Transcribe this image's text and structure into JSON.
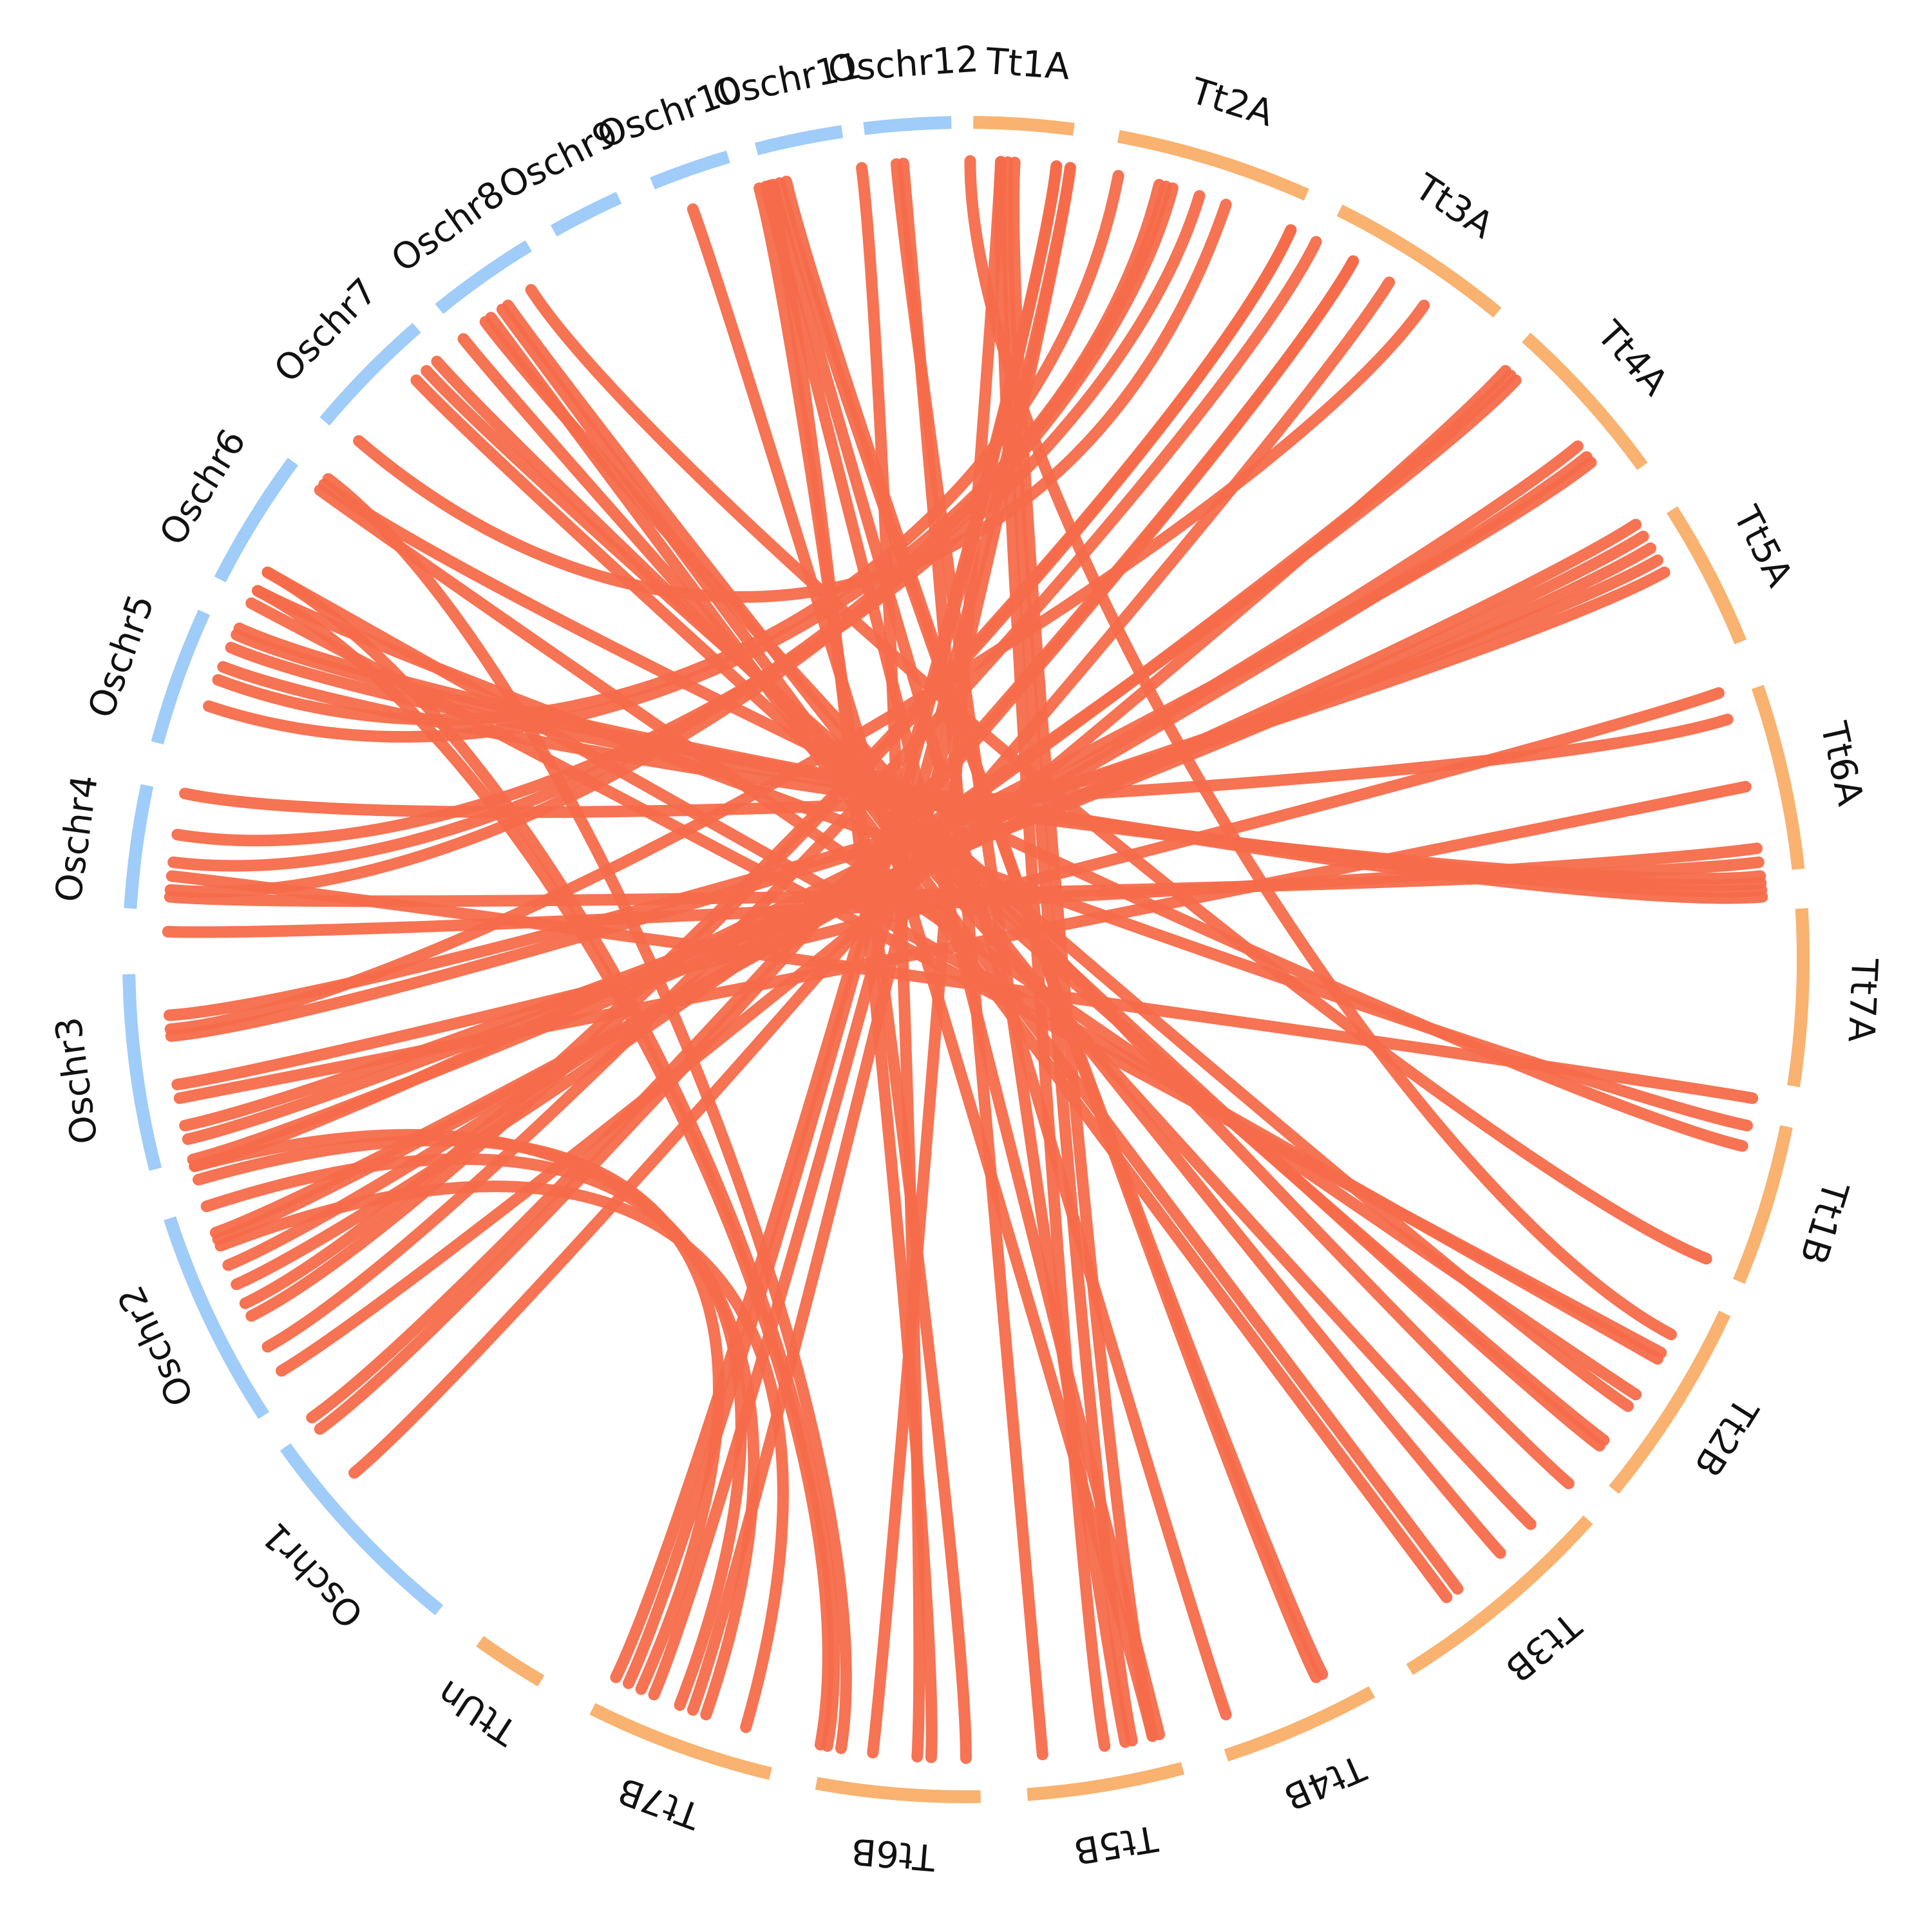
{
  "colors": {
    "rice_chromosome": "#9fccf8",
    "wheat_chromosome": "#f9b26f",
    "link": "#f56b4a",
    "label": "#111111",
    "background": "#ffffff"
  },
  "chromosomes": [
    {
      "id": "Tt1A",
      "label": "Tt1A",
      "group": "wheat",
      "start": 90.5,
      "end": 97.4
    },
    {
      "id": "Tt2A",
      "label": "Tt2A",
      "group": "wheat",
      "start": 100.5,
      "end": 114.0
    },
    {
      "id": "Tt3A",
      "label": "Tt3A",
      "group": "wheat",
      "start": 116.5,
      "end": 129.4
    },
    {
      "id": "Tt4A",
      "label": "Tt4A",
      "group": "wheat",
      "start": 132.0,
      "end": 143.9
    },
    {
      "id": "Tt5A",
      "label": "Tt5A",
      "group": "wheat",
      "start": 147.5,
      "end": 157.7
    },
    {
      "id": "Tt6A",
      "label": "Tt6A",
      "group": "wheat",
      "start": 161.0,
      "end": 173.8
    },
    {
      "id": "Tt7A",
      "label": "Tt7A",
      "group": "wheat",
      "start": 176.5,
      "end": 188.7
    },
    {
      "id": "Tt1B",
      "label": "Tt1B",
      "group": "wheat",
      "start": 191.5,
      "end": 202.6
    },
    {
      "id": "Tt2B",
      "label": "Tt2B",
      "group": "wheat",
      "start": 205.0,
      "end": 219.3
    },
    {
      "id": "Tt3B",
      "label": "Tt3B",
      "group": "wheat",
      "start": 222.0,
      "end": 238.0
    },
    {
      "id": "Tt4B",
      "label": "Tt4B",
      "group": "wheat",
      "start": 241.0,
      "end": 251.9
    },
    {
      "id": "Tt5B",
      "label": "Tt5B",
      "group": "wheat",
      "start": 255.0,
      "end": 265.8
    },
    {
      "id": "Tt6B",
      "label": "Tt6B",
      "group": "wheat",
      "start": 269.0,
      "end": 280.3
    },
    {
      "id": "Tt7B",
      "label": "Tt7B",
      "group": "wheat",
      "start": 283.5,
      "end": 296.5
    },
    {
      "id": "TtUn",
      "label": "TtUn",
      "group": "wheat",
      "start": 300.5,
      "end": 305.5
    },
    {
      "id": "Oschr1",
      "label": "Oschr1",
      "group": "rice",
      "start": 309.0,
      "end": 324.4
    },
    {
      "id": "Oschr2",
      "label": "Oschr2",
      "group": "rice",
      "start": 327.0,
      "end": 342.0
    },
    {
      "id": "Oschr3",
      "label": "Oschr3",
      "group": "rice",
      "start": 345.5,
      "end": 359.0
    },
    {
      "id": "Oschr4",
      "label": "Oschr4",
      "group": "rice",
      "start": 3.5,
      "end": 12.0
    },
    {
      "id": "Oschr5",
      "label": "Oschr5",
      "group": "rice",
      "start": 15.0,
      "end": 24.5
    },
    {
      "id": "Oschr6",
      "label": "Oschr6",
      "group": "rice",
      "start": 27.0,
      "end": 36.5
    },
    {
      "id": "Oschr7",
      "label": "Oschr7",
      "group": "rice",
      "start": 40.0,
      "end": 49.0
    },
    {
      "id": "Oschr8",
      "label": "Oschr8",
      "group": "rice",
      "start": 51.0,
      "end": 58.5
    },
    {
      "id": "Oschr9",
      "label": "Oschr9",
      "group": "rice",
      "start": 60.5,
      "end": 65.5
    },
    {
      "id": "Oschr10",
      "label": "Oschr10",
      "group": "rice",
      "start": 68.0,
      "end": 73.5
    },
    {
      "id": "Oschr11",
      "label": "Oschr11",
      "group": "rice",
      "start": 75.5,
      "end": 81.5
    },
    {
      "id": "Oschr12",
      "label": "Oschr12",
      "group": "rice",
      "start": 83.0,
      "end": 89.0
    }
  ],
  "links": [
    [
      90.3,
      208.0
    ],
    [
      92.5,
      276.7
    ],
    [
      92.5,
      260.0
    ],
    [
      93.0,
      258.0
    ],
    [
      93.5,
      256.5
    ],
    [
      96.5,
      295.0
    ],
    [
      96.5,
      296.0
    ],
    [
      97.5,
      293.0
    ],
    [
      97.5,
      290.0
    ],
    [
      101.0,
      20.5
    ],
    [
      104.0,
      18.5
    ],
    [
      104.5,
      7.0
    ],
    [
      105.0,
      5.0
    ],
    [
      107.0,
      9.0
    ],
    [
      109.0,
      40.5
    ],
    [
      114.0,
      333.5
    ],
    [
      114.0,
      334.5
    ],
    [
      116.0,
      331.0
    ],
    [
      119.0,
      324.0
    ],
    [
      119.0,
      325.0
    ],
    [
      122.0,
      320.0
    ],
    [
      125.0,
      355.0
    ],
    [
      132.5,
      329.0
    ],
    [
      133.0,
      336.0
    ],
    [
      133.5,
      337.5
    ],
    [
      140.0,
      339.5
    ],
    [
      141.0,
      340.0
    ],
    [
      141.5,
      345.0
    ],
    [
      147.0,
      345.5
    ],
    [
      148.0,
      347.0
    ],
    [
      149.0,
      348.0
    ],
    [
      150.0,
      354.5
    ],
    [
      151.0,
      356.0
    ],
    [
      160.5,
      351.0
    ],
    [
      162.5,
      12.0
    ],
    [
      167.5,
      350.0
    ],
    [
      172.0,
      2.0
    ],
    [
      173.0,
      4.5
    ],
    [
      174.0,
      21.5
    ],
    [
      174.5,
      23.0
    ],
    [
      175.0,
      24.0
    ],
    [
      175.5,
      24.5
    ],
    [
      190.0,
      6.0
    ],
    [
      192.0,
      27.5
    ],
    [
      193.5,
      36.5
    ],
    [
      202.0,
      57.0
    ],
    [
      209.5,
      26.5
    ],
    [
      210.0,
      29.0
    ],
    [
      213.0,
      36.0
    ],
    [
      214.0,
      47.5
    ],
    [
      217.0,
      46.5
    ],
    [
      217.5,
      48.5
    ],
    [
      221.0,
      53.0
    ],
    [
      225.0,
      51.0
    ],
    [
      228.0,
      55.0
    ],
    [
      232.0,
      54.5
    ],
    [
      233.0,
      53.5
    ],
    [
      243.5,
      76.5
    ],
    [
      244.0,
      77.0
    ],
    [
      251.0,
      76.0
    ],
    [
      256.0,
      75.5
    ],
    [
      256.5,
      70.0
    ],
    [
      258.5,
      85.0
    ],
    [
      264.5,
      85.5
    ],
    [
      270.0,
      75.0
    ],
    [
      272.5,
      75.8
    ],
    [
      273.5,
      82.5
    ],
    [
      279.0,
      37.0
    ],
    [
      280.0,
      29.0
    ],
    [
      280.5,
      27.5
    ],
    [
      286.0,
      339.0
    ],
    [
      289.0,
      345.0
    ],
    [
      291.0,
      342.0
    ],
    [
      294.0,
      344.0
    ]
  ]
}
